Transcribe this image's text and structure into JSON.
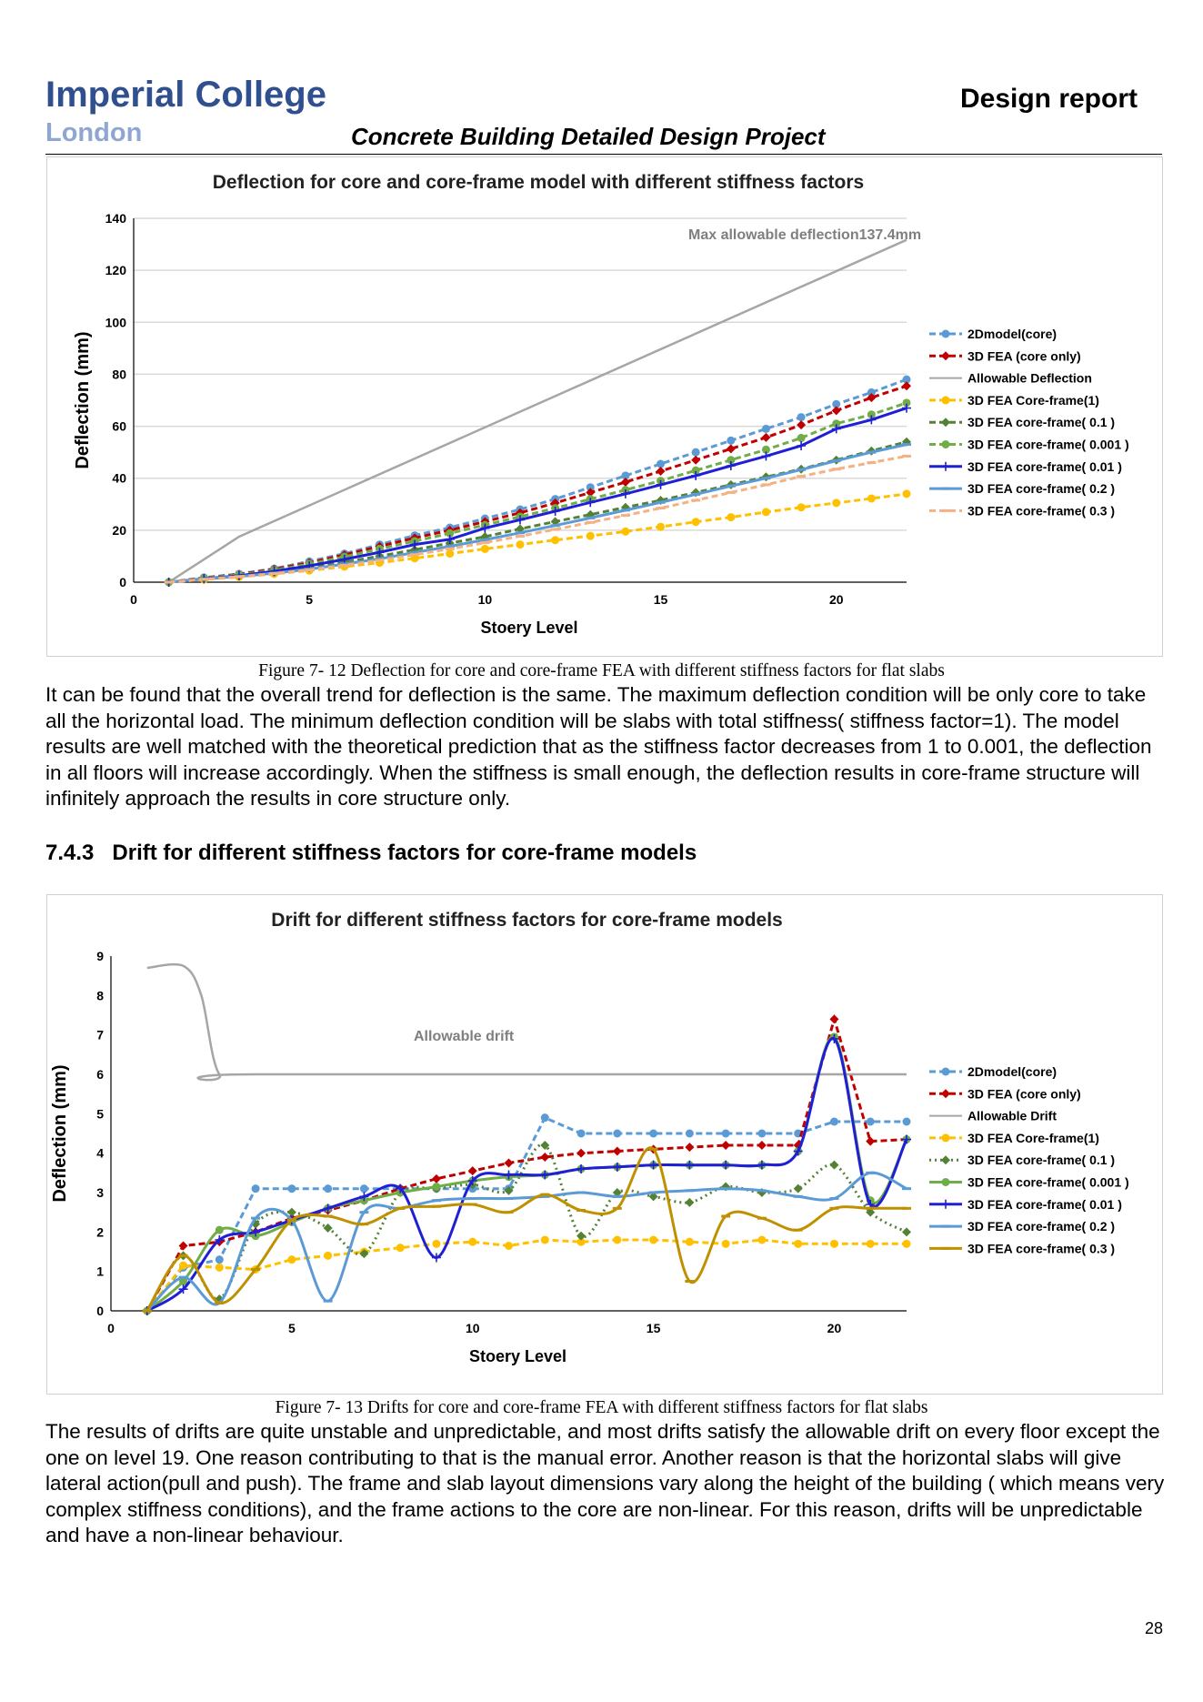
{
  "header": {
    "logo_line1": "Imperial College",
    "logo_line2": "London",
    "project_title": "Concrete Building Detailed Design Project",
    "doc_type": "Design report"
  },
  "figure1": {
    "caption": "Figure 7- 12 Deflection for core and core-frame FEA with different stiffness factors for flat slabs"
  },
  "paragraph1": "It can be found that the overall trend for deflection is the same. The maximum deflection condition will be only core to take all the horizontal load. The minimum deflection condition will be slabs with total stiffness( stiffness factor=1). The model results are well matched with the theoretical prediction that as the stiffness factor decreases from 1 to 0.001, the deflection in all floors will increase accordingly. When the stiffness is small enough, the deflection results in core-frame structure will infinitely approach the results in core structure only.",
  "section": {
    "number": "7.4.3",
    "title": "Drift for different stiffness factors for core-frame models"
  },
  "figure2": {
    "caption": "Figure 7- 13 Drifts for core and core-frame FEA with different stiffness factors for flat slabs"
  },
  "paragraph2": "The results of drifts are quite unstable and unpredictable, and most drifts satisfy the allowable drift on every floor except the one on level 19. One reason contributing to that is the manual error. Another reason is that the horizontal slabs will give lateral action(pull and push). The frame and slab layout dimensions vary along the height of the building ( which means very complex stiffness conditions), and the frame actions to the core are non-linear. For this reason, drifts will be unpredictable and have a non-linear behaviour.",
  "page_number": "28",
  "chart_data": [
    {
      "type": "line",
      "title": "Deflection for core and core-frame model with different stiffness factors",
      "xlabel": "Stoery Level",
      "ylabel": "Deflection (mm)",
      "xlim": [
        0,
        22
      ],
      "ylim": [
        0,
        140
      ],
      "xticks": [
        0,
        5,
        10,
        15,
        20
      ],
      "yticks": [
        0,
        20,
        40,
        60,
        80,
        100,
        120,
        140
      ],
      "grid": true,
      "legend_position": "right",
      "annotation": "Max allowable deflection137.4mm",
      "x": [
        1,
        2,
        3,
        4,
        5,
        6,
        7,
        8,
        9,
        10,
        11,
        12,
        13,
        14,
        15,
        16,
        17,
        18,
        19,
        20,
        21,
        22
      ],
      "series": [
        {
          "name": "2Dmodel(core)",
          "color": "#5b9bd5",
          "dash": "7,4",
          "marker": "circle",
          "values": [
            0,
            1.8,
            3.2,
            5.2,
            8,
            11,
            14.5,
            18,
            21,
            24.5,
            28,
            32,
            36.5,
            41,
            45.5,
            50,
            54.5,
            59,
            63.5,
            68.5,
            73,
            78
          ]
        },
        {
          "name": "3D FEA (core only)",
          "color": "#c00000",
          "dash": "7,4",
          "marker": "diamond",
          "values": [
            0,
            1.6,
            3,
            5,
            7.5,
            10.5,
            13.8,
            17,
            20,
            23.3,
            26.7,
            30.5,
            34.5,
            38.5,
            42.7,
            47,
            51.3,
            55.7,
            60.5,
            66,
            71,
            75.5
          ]
        },
        {
          "name": "Allowable Deflection",
          "color": "#a6a6a6",
          "dash": "",
          "marker": "none",
          "points": [
            [
              1,
              0
            ],
            [
              3,
              17.5
            ],
            [
              22,
              131.7
            ]
          ]
        },
        {
          "name": "3D FEA Core-frame(1)",
          "color": "#ffc000",
          "dash": "7,4",
          "marker": "circle",
          "values": [
            0,
            1,
            2,
            3.2,
            4.5,
            6,
            7.5,
            9.2,
            11,
            12.8,
            14.5,
            16.2,
            17.8,
            19.5,
            21.3,
            23.2,
            25,
            27,
            28.8,
            30.5,
            32.2,
            34
          ]
        },
        {
          "name": "3D FEA core-frame( 0.1 )",
          "color": "#548235",
          "dash": "7,4",
          "marker": "diamond",
          "values": [
            0,
            1.3,
            2.4,
            3.8,
            5.5,
            7.7,
            10,
            12.5,
            15,
            17.5,
            20.5,
            23.3,
            26,
            28.8,
            31.5,
            34.5,
            37.5,
            40.5,
            43.5,
            47,
            50.5,
            54
          ]
        },
        {
          "name": "3D FEA core-frame( 0.001 )",
          "color": "#70ad47",
          "dash": "7,4",
          "marker": "circle",
          "values": [
            0,
            1.5,
            2.8,
            4.6,
            7,
            9.8,
            12.8,
            15.8,
            18.8,
            22,
            25.2,
            28.5,
            32,
            35.5,
            39,
            43,
            47,
            51,
            55.5,
            61,
            64.5,
            69
          ]
        },
        {
          "name": "3D FEA core-frame( 0.01 )",
          "color": "#1f1fd6",
          "dash": "",
          "marker": "plus",
          "values": [
            0,
            1.3,
            2.5,
            4.2,
            6.3,
            8.8,
            11.5,
            14.5,
            16.5,
            20.8,
            24,
            27.3,
            30.7,
            34,
            37.5,
            41,
            44.8,
            48.5,
            52.5,
            59,
            62.5,
            67
          ]
        },
        {
          "name": "3D FEA core-frame( 0.2 )",
          "color": "#5b9bd5",
          "dash": "",
          "marker": "dash",
          "values": [
            0,
            1.2,
            2.2,
            3.5,
            5,
            7,
            9,
            11.4,
            13.8,
            16.3,
            19,
            21.8,
            24.7,
            27.7,
            30.7,
            33.8,
            37,
            40,
            43.3,
            46.7,
            50,
            53
          ]
        },
        {
          "name": "3D FEA core-frame( 0.3 )",
          "color": "#f4b183",
          "dash": "7,4",
          "marker": "dash",
          "values": [
            0,
            1.1,
            2.1,
            3.3,
            4.7,
            6.5,
            8.4,
            10.6,
            12.8,
            15.2,
            17.7,
            20.3,
            23,
            25.7,
            28.5,
            31.5,
            34.5,
            37.5,
            40.7,
            43.5,
            46,
            48.5
          ]
        }
      ]
    },
    {
      "type": "line",
      "title": "Drift for different stiffness factors for core-frame models",
      "xlabel": "Stoery Level",
      "ylabel": "Deflection (mm)",
      "xlim": [
        0,
        22
      ],
      "ylim": [
        0,
        9
      ],
      "xticks": [
        0,
        5,
        10,
        15,
        20
      ],
      "yticks": [
        0,
        1,
        2,
        3,
        4,
        5,
        6,
        7,
        8,
        9
      ],
      "grid": false,
      "legend_position": "right",
      "annotation": "Allowable drift",
      "x": [
        1,
        2,
        3,
        4,
        5,
        6,
        7,
        8,
        9,
        10,
        11,
        12,
        13,
        14,
        15,
        16,
        17,
        18,
        19,
        20,
        21,
        22
      ],
      "series": [
        {
          "name": "2Dmodel(core)",
          "color": "#5b9bd5",
          "dash": "7,4",
          "marker": "circle",
          "smooth": false,
          "values": [
            0,
            1.1,
            1.3,
            3.1,
            3.1,
            3.1,
            3.1,
            3.1,
            3.1,
            3.1,
            3.1,
            4.9,
            4.5,
            4.5,
            4.5,
            4.5,
            4.5,
            4.5,
            4.5,
            4.8,
            4.8,
            4.8
          ]
        },
        {
          "name": "3D FEA (core only)",
          "color": "#c00000",
          "dash": "7,4",
          "marker": "diamond",
          "smooth": false,
          "values": [
            0,
            1.65,
            1.75,
            2.0,
            2.35,
            2.55,
            2.8,
            3.1,
            3.35,
            3.55,
            3.75,
            3.9,
            4.0,
            4.05,
            4.1,
            4.15,
            4.2,
            4.2,
            4.2,
            7.4,
            4.3,
            4.35
          ]
        },
        {
          "name": "Allowable Drift",
          "color": "#a6a6a6",
          "dash": "",
          "marker": "none",
          "smooth": true,
          "points": [
            [
              1,
              8.7
            ],
            [
              2,
              8.75
            ],
            [
              2.5,
              8.0
            ],
            [
              3,
              6.0
            ],
            [
              4,
              6.0
            ],
            [
              22,
              6.0
            ]
          ]
        },
        {
          "name": "3D FEA Core-frame(1)",
          "color": "#ffc000",
          "dash": "7,4",
          "marker": "circle",
          "smooth": false,
          "values": [
            0,
            1.15,
            1.1,
            1.05,
            1.3,
            1.4,
            1.5,
            1.6,
            1.7,
            1.75,
            1.65,
            1.8,
            1.75,
            1.8,
            1.8,
            1.75,
            1.7,
            1.8,
            1.7,
            1.7,
            1.7,
            1.7
          ]
        },
        {
          "name": "3D FEA core-frame( 0.1 )",
          "color": "#548235",
          "dash": "2,4",
          "marker": "diamond",
          "smooth": true,
          "values": [
            0,
            1.4,
            0.3,
            2.2,
            2.5,
            2.1,
            1.45,
            3.0,
            3.1,
            3.2,
            3.05,
            4.2,
            1.9,
            3.0,
            2.9,
            2.75,
            3.15,
            3.0,
            3.1,
            3.7,
            2.5,
            2.0
          ]
        },
        {
          "name": "3D FEA core-frame( 0.001 )",
          "color": "#70ad47",
          "dash": "",
          "marker": "circle",
          "smooth": true,
          "values": [
            0,
            0.75,
            2.05,
            1.9,
            2.25,
            2.6,
            2.8,
            3.0,
            3.15,
            3.3,
            3.4,
            3.45,
            3.6,
            3.65,
            3.7,
            3.7,
            3.7,
            3.7,
            4.05,
            6.95,
            2.8,
            4.35
          ]
        },
        {
          "name": "3D FEA core-frame( 0.01 )",
          "color": "#1f1fd6",
          "dash": "",
          "marker": "plus",
          "smooth": true,
          "values": [
            0,
            0.55,
            1.8,
            2.0,
            2.3,
            2.6,
            2.9,
            3.1,
            1.35,
            3.3,
            3.45,
            3.45,
            3.6,
            3.65,
            3.7,
            3.7,
            3.7,
            3.7,
            4.05,
            6.9,
            2.7,
            4.35
          ]
        },
        {
          "name": "3D FEA core-frame( 0.2 )",
          "color": "#5b9bd5",
          "dash": "",
          "marker": "dash",
          "smooth": true,
          "values": [
            0,
            0.85,
            0.2,
            2.35,
            2.3,
            0.25,
            2.5,
            2.6,
            2.8,
            2.85,
            2.85,
            2.9,
            3.0,
            2.9,
            3.0,
            3.05,
            3.1,
            3.05,
            2.9,
            2.85,
            3.5,
            3.1
          ]
        },
        {
          "name": "3D FEA core-frame( 0.3 )",
          "color": "#bf9000",
          "dash": "",
          "marker": "dash",
          "smooth": true,
          "values": [
            0,
            1.4,
            0.2,
            1.05,
            2.3,
            2.4,
            2.2,
            2.6,
            2.65,
            2.7,
            2.5,
            2.95,
            2.55,
            2.6,
            4.1,
            0.75,
            2.4,
            2.35,
            2.05,
            2.6,
            2.6,
            2.6
          ]
        }
      ]
    }
  ]
}
